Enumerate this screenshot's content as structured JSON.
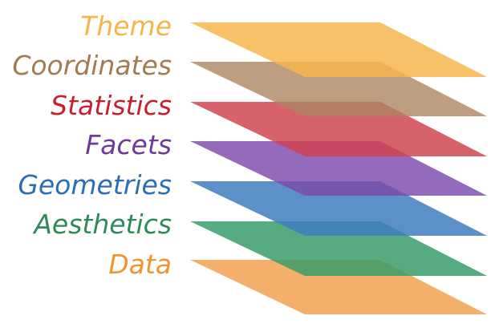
{
  "layers": [
    {
      "label": "Theme",
      "color": "#f6b44b"
    },
    {
      "label": "Coordinates",
      "color": "#a37b51"
    },
    {
      "label": "Statistics",
      "color": "#c81f2e"
    },
    {
      "label": "Facets",
      "color": "#6e3a9c"
    },
    {
      "label": "Geometries",
      "color": "#2a6eb4"
    },
    {
      "label": "Aesthetics",
      "color": "#2e8b57"
    },
    {
      "label": "Data",
      "color": "#f1942c"
    }
  ],
  "palette": {
    "Theme": "#f7b54c",
    "Coordinates": "#b99771",
    "Statistics": "#d6525e",
    "Facets": "#8f64b6",
    "Geometries": "#5589c7",
    "Aesthetics": "#4aa679",
    "Data": "#f3a65b"
  }
}
